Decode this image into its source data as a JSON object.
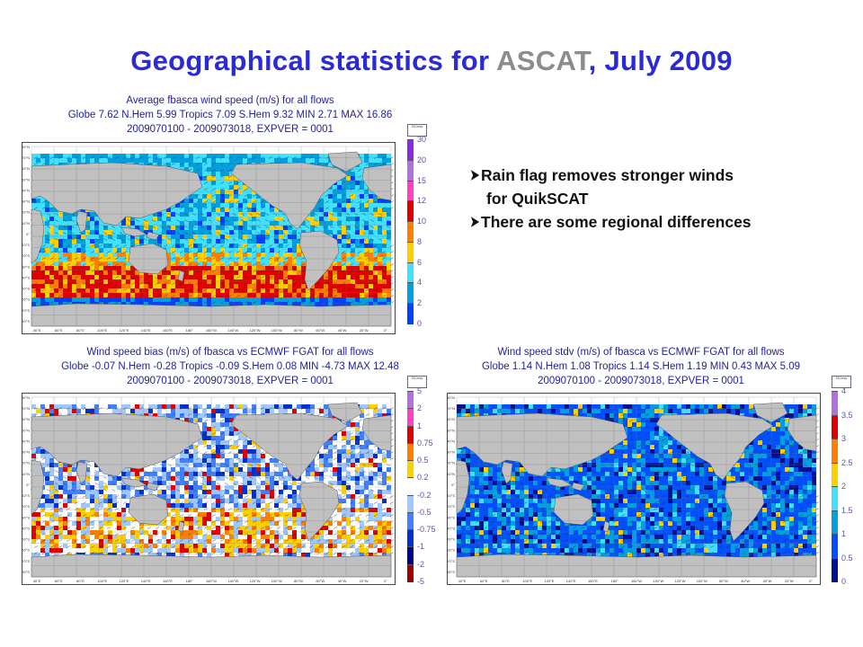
{
  "slide": {
    "title_part1": "Geographical statistics for ",
    "title_highlight": "ASCAT",
    "title_part2": ", July 2009",
    "bullets": [
      {
        "line1": "Rain flag removes stronger winds",
        "line2": "for QuikSCAT"
      },
      {
        "line1": "There are some regional differences",
        "line2": ""
      }
    ]
  },
  "panels": [
    {
      "id": "avg",
      "title_lines": [
        "Average fbasca wind speed (m/s) for all flows",
        "Globe 7.62  N.Hem 5.99  Tropics 7.09  S.Hem 9.32  MIN 2.71  MAX 16.86",
        "2009070100 - 2009073018, EXPVER = 0001"
      ],
      "stats": {
        "Globe": 7.62,
        "N.Hem": 5.99,
        "Tropics": 7.09,
        "S.Hem": 9.32,
        "MIN": 2.71,
        "MAX": 16.86
      },
      "legend": {
        "labels": [
          "30",
          "20",
          "15",
          "12",
          "10",
          "8",
          "6",
          "4",
          "2",
          "0"
        ],
        "colors": [
          "#8a2be2",
          "#b070e0",
          "#ff40c0",
          "#e00000",
          "#ff8000",
          "#ffd000",
          "#40e0ff",
          "#00a0e0",
          "#0040ff",
          "#000080"
        ]
      }
    },
    {
      "id": "bias",
      "title_lines": [
        "Wind speed bias (m/s) of fbasca vs ECMWF FGAT for all flows",
        "Globe -0.07  N.Hem -0.28  Tropics -0.09  S.Hem 0.08  MIN -4.73  MAX 12.48",
        "2009070100 - 2009073018, EXPVER = 0001"
      ],
      "stats": {
        "Globe": -0.07,
        "N.Hem": -0.28,
        "Tropics": -0.09,
        "S.Hem": 0.08,
        "MIN": -4.73,
        "MAX": 12.48
      },
      "legend": {
        "labels": [
          "5",
          "2",
          "1",
          "0.75",
          "0.5",
          "0.2",
          "-0.2",
          "-0.5",
          "-0.75",
          "-1",
          "-2",
          "-5"
        ],
        "colors": [
          "#b070e0",
          "#ff40c0",
          "#e00000",
          "#ff8000",
          "#ffd000",
          "#ffffff",
          "#9ec8ff",
          "#4080ff",
          "#0030d0",
          "#000090",
          "#a00000",
          "#600000"
        ]
      }
    },
    {
      "id": "stdv",
      "title_lines": [
        "Wind speed stdv (m/s) of fbasca vs ECMWF FGAT for all flows",
        "Globe 1.14  N.Hem 1.08  Tropics 1.14  S.Hem 1.19  MIN 0.43  MAX 5.09",
        "2009070100 - 2009073018, EXPVER = 0001"
      ],
      "stats": {
        "Globe": 1.14,
        "N.Hem": 1.08,
        "Tropics": 1.14,
        "S.Hem": 1.19,
        "MIN": 0.43,
        "MAX": 5.09
      },
      "legend": {
        "labels": [
          "4",
          "3.5",
          "3",
          "2.5",
          "2",
          "1.5",
          "1",
          "0.5",
          "0"
        ],
        "colors": [
          "#b070e0",
          "#e00000",
          "#ff8000",
          "#ffd000",
          "#40e0ff",
          "#00a0e0",
          "#0050ff",
          "#001090",
          "#000060"
        ]
      }
    }
  ],
  "axes": {
    "lat_labels": [
      "80°N",
      "70°N",
      "60°N",
      "50°N",
      "40°N",
      "30°N",
      "20°N",
      "10°N",
      "0°",
      "10°S",
      "20°S",
      "30°S",
      "40°S",
      "50°S",
      "60°S",
      "70°S",
      "80°S"
    ],
    "lon_labels": [
      "40°E",
      "60°E",
      "80°E",
      "100°E",
      "120°E",
      "140°E",
      "160°E",
      "180°",
      "160°W",
      "140°W",
      "120°W",
      "100°W",
      "80°W",
      "60°W",
      "40°W",
      "20°W",
      "0°"
    ]
  },
  "colors": {
    "title_blue": "#2b2bd6",
    "title_gray": "#8c8c8c",
    "panel_title": "#1f1f9a",
    "land": "#c0c0c0"
  }
}
